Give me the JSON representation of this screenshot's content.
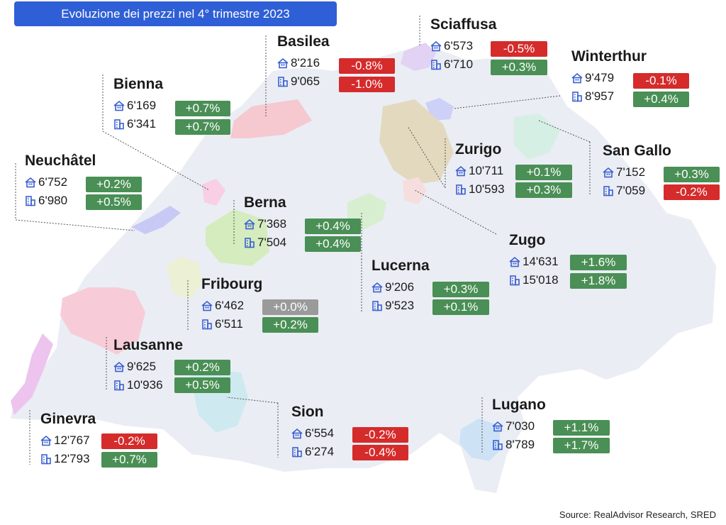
{
  "title": "Evoluzione dei prezzi nel 4° trimestre 2023",
  "source": "Source: RealAdvisor Research, SRED",
  "colors": {
    "positive": "#4a8f55",
    "negative": "#d52b2b",
    "neutral": "#9a9a9a",
    "banner": "#2f5fd6",
    "icons": "#3b5fd0"
  },
  "icons": {
    "apartment": "apartment-icon",
    "house": "house-icon"
  },
  "cities": [
    {
      "key": "basilea",
      "name": "Basilea",
      "apartment_price": "8'216",
      "apartment_change": "-0.8%",
      "house_price": "9'065",
      "house_change": "-1.0%"
    },
    {
      "key": "sciaffusa",
      "name": "Sciaffusa",
      "apartment_price": "6'573",
      "apartment_change": "-0.5%",
      "house_price": "6'710",
      "house_change": "+0.3%"
    },
    {
      "key": "winterthur",
      "name": "Winterthur",
      "apartment_price": "9'479",
      "apartment_change": "-0.1%",
      "house_price": "8'957",
      "house_change": "+0.4%"
    },
    {
      "key": "bienna",
      "name": "Bienna",
      "apartment_price": "6'169",
      "apartment_change": "+0.7%",
      "house_price": "6'341",
      "house_change": "+0.7%"
    },
    {
      "key": "zurigo",
      "name": "Zurigo",
      "apartment_price": "10'711",
      "apartment_change": "+0.1%",
      "house_price": "10'593",
      "house_change": "+0.3%"
    },
    {
      "key": "sangallo",
      "name": "San Gallo",
      "apartment_price": "7'152",
      "apartment_change": "+0.3%",
      "house_price": "7'059",
      "house_change": "-0.2%"
    },
    {
      "key": "neuchatel",
      "name": "Neuchâtel",
      "apartment_price": "6'752",
      "apartment_change": "+0.2%",
      "house_price": "6'980",
      "house_change": "+0.5%"
    },
    {
      "key": "berna",
      "name": "Berna",
      "apartment_price": "7'368",
      "apartment_change": "+0.4%",
      "house_price": "7'504",
      "house_change": "+0.4%"
    },
    {
      "key": "zugo",
      "name": "Zugo",
      "apartment_price": "14'631",
      "apartment_change": "+1.6%",
      "house_price": "15'018",
      "house_change": "+1.8%"
    },
    {
      "key": "lucerna",
      "name": "Lucerna",
      "apartment_price": "9'206",
      "apartment_change": "+0.3%",
      "house_price": "9'523",
      "house_change": "+0.1%"
    },
    {
      "key": "fribourg",
      "name": "Fribourg",
      "apartment_price": "6'462",
      "apartment_change": "+0.0%",
      "house_price": "6'511",
      "house_change": "+0.2%"
    },
    {
      "key": "lausanne",
      "name": "Lausanne",
      "apartment_price": "9'625",
      "apartment_change": "+0.2%",
      "house_price": "10'936",
      "house_change": "+0.5%"
    },
    {
      "key": "ginevra",
      "name": "Ginevra",
      "apartment_price": "12'767",
      "apartment_change": "-0.2%",
      "house_price": "12'793",
      "house_change": "+0.7%"
    },
    {
      "key": "sion",
      "name": "Sion",
      "apartment_price": "6'554",
      "apartment_change": "-0.2%",
      "house_price": "6'274",
      "house_change": "-0.4%"
    },
    {
      "key": "lugano",
      "name": "Lugano",
      "apartment_price": "7'030",
      "apartment_change": "+1.1%",
      "house_price": "8'789",
      "house_change": "+1.7%"
    }
  ]
}
